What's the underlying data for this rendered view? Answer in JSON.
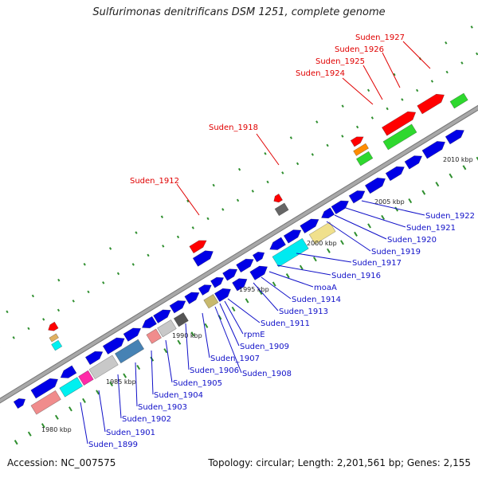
{
  "title": "Sulfurimonas denitrificans DSM 1251, complete genome",
  "footer": {
    "accession": "Accession: NC_007575",
    "stats": "Topology: circular; Length: 2,201,561 bp; Genes: 2,155"
  },
  "colors": {
    "background": "#ffffff",
    "backbone": "#a8a8a8",
    "tick": "#2f8f2f",
    "default_cds": "#0000e6",
    "label_red": "#e00000",
    "label_blue": "#1010c8"
  },
  "scale_labels": [
    "1980 kbp",
    "1985 kbp",
    "1990 kbp",
    "1995 kbp",
    "2000 kbp",
    "2005 kbp",
    "2010 kbp"
  ],
  "labels_upper": [
    "Suden_1912",
    "Suden_1918",
    "Suden_1924",
    "Suden_1925",
    "Suden_1926",
    "Suden_1927"
  ],
  "labels_lower": [
    "Suden_1899",
    "Suden_1901",
    "Suden_1902",
    "Suden_1903",
    "Suden_1904",
    "Suden_1905",
    "Suden_1906",
    "Suden_1907",
    "Suden_1908",
    "Suden_1909",
    "rpmE",
    "Suden_1911",
    "Suden_1913",
    "Suden_1914",
    "moaA",
    "Suden_1916",
    "Suden_1917",
    "Suden_1919",
    "Suden_1920",
    "Suden_1921",
    "Suden_1922"
  ]
}
